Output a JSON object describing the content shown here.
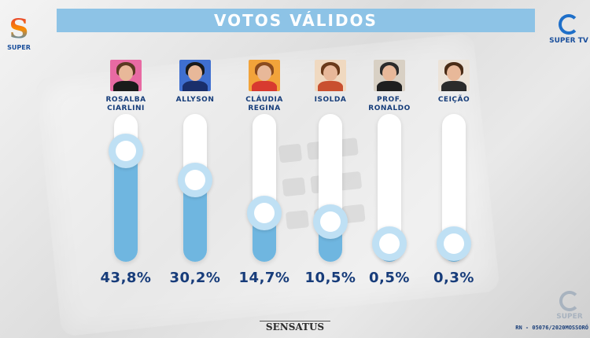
{
  "header": {
    "title": "VOTOS VÁLIDOS"
  },
  "logos": {
    "left_text": "SUPER",
    "right_text": "SUPER TV",
    "bottom_text": "SUPER"
  },
  "footer": {
    "brand": "SENSATUS",
    "registration": "RN - 05076/2020MOSSORÓ"
  },
  "colors": {
    "title_bar": "#8dc3e6",
    "fill": "#6fb6e0",
    "text": "#163d7a"
  },
  "chart_data": {
    "type": "bar",
    "title": "VOTOS VÁLIDOS",
    "categories": [
      "ROSALBA CIARLINI",
      "ALLYSON",
      "CLÁUDIA REGINA",
      "ISOLDA",
      "PROF. RONALDO",
      "CEIÇÃO"
    ],
    "values": [
      43.8,
      30.2,
      14.7,
      10.5,
      0.5,
      0.3
    ],
    "value_labels": [
      "43,8%",
      "30,2%",
      "14,7%",
      "10,5%",
      "0,5%",
      "0,3%"
    ],
    "ylim": [
      0,
      50
    ],
    "unit": "%"
  },
  "candidates": [
    {
      "name_line1": "ROSALBA",
      "name_line2": "CIARLINI",
      "pct": "43,8%",
      "photo_bg": "#e86aa3",
      "hair": "#5a3a22",
      "shirt": "#1b1b1b"
    },
    {
      "name_line1": "ALLYSON",
      "name_line2": "",
      "pct": "30,2%",
      "photo_bg": "#3f6fd0",
      "hair": "#1a1a1a",
      "shirt": "#1a2f6b"
    },
    {
      "name_line1": "CLÁUDIA",
      "name_line2": "REGINA",
      "pct": "14,7%",
      "photo_bg": "#f2a33a",
      "hair": "#8a4a1e",
      "shirt": "#d83a2f"
    },
    {
      "name_line1": "ISOLDA",
      "name_line2": "",
      "pct": "10,5%",
      "photo_bg": "#f0d9c0",
      "hair": "#6a3a1a",
      "shirt": "#c9502f"
    },
    {
      "name_line1": "PROF.",
      "name_line2": "RONALDO",
      "pct": "0,5%",
      "photo_bg": "#d8d0c4",
      "hair": "#2b2b2b",
      "shirt": "#1f1f1f"
    },
    {
      "name_line1": "CEIÇÃO",
      "name_line2": "",
      "pct": "0,3%",
      "photo_bg": "#ece3d8",
      "hair": "#4a2c16",
      "shirt": "#2b2b2b"
    }
  ]
}
